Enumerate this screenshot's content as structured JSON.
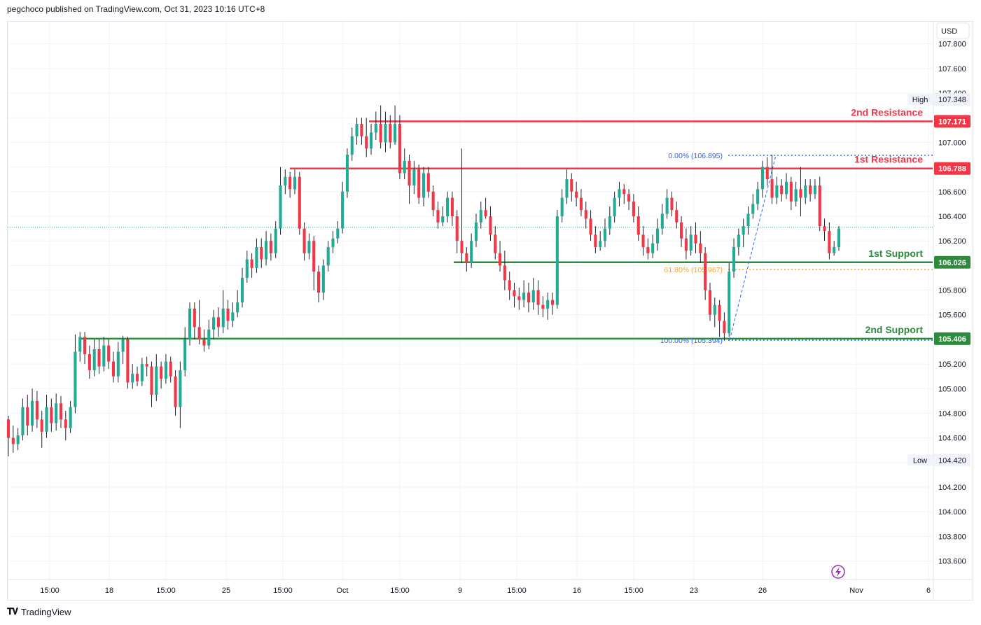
{
  "header": {
    "published_text": "pegchoco published on TradingView.com, Oct 31, 2023 10:16 UTC+8"
  },
  "footer": {
    "logo_icon": "tradingview-logo-icon",
    "brand": "TradingView"
  },
  "colors": {
    "up": "#22ab94",
    "down": "#f23645",
    "resistance": "#f23645",
    "support": "#2e8b3e",
    "fib_blue": "#2962ff",
    "fib_orange": "#f5a623",
    "grid": "#f0f3fa"
  },
  "chart_data": {
    "type": "candlestick",
    "currency": "USD",
    "ylim": [
      103.45,
      107.98
    ],
    "y_ticks": [
      "107.800",
      "107.600",
      "107.400",
      "107.200",
      "107.000",
      "106.800",
      "106.600",
      "106.400",
      "106.200",
      "106.000",
      "105.800",
      "105.600",
      "105.400",
      "105.200",
      "105.000",
      "104.800",
      "104.600",
      "104.400",
      "104.200",
      "104.000",
      "103.800",
      "103.600"
    ],
    "x_ticks": [
      "15:00",
      "18",
      "15:00",
      "25",
      "15:00",
      "Oct",
      "15:00",
      "9",
      "15:00",
      "16",
      "15:00",
      "23",
      "26",
      "Nov",
      "6"
    ],
    "high": {
      "label": "High",
      "value": "107.348"
    },
    "low": {
      "label": "Low",
      "value": "104.420"
    },
    "current_price": 106.31,
    "levels": [
      {
        "name": "2nd Resistance",
        "value": "107.171",
        "kind": "resistance"
      },
      {
        "name": "1st Resistance",
        "value": "106.788",
        "kind": "resistance"
      },
      {
        "name": "1st Support",
        "value": "106.026",
        "kind": "support"
      },
      {
        "name": "2nd Support",
        "value": "105.406",
        "kind": "support"
      }
    ],
    "fibonacci": [
      {
        "label": "0.00% (106.895)",
        "value": 106.895
      },
      {
        "label": "61.80% (105.967)",
        "value": 105.967
      },
      {
        "label": "100.00% (105.394)",
        "value": 105.394
      }
    ],
    "candles": [
      [
        104.75,
        104.6,
        104.78,
        104.45
      ],
      [
        104.6,
        104.55,
        104.7,
        104.48
      ],
      [
        104.55,
        104.62,
        104.68,
        104.5
      ],
      [
        104.62,
        104.85,
        104.92,
        104.58
      ],
      [
        104.85,
        104.7,
        104.95,
        104.62
      ],
      [
        104.7,
        104.9,
        105.0,
        104.65
      ],
      [
        104.9,
        104.75,
        104.98,
        104.68
      ],
      [
        104.75,
        104.65,
        104.82,
        104.52
      ],
      [
        104.65,
        104.85,
        104.95,
        104.6
      ],
      [
        104.85,
        104.72,
        104.92,
        104.65
      ],
      [
        104.72,
        104.88,
        104.96,
        104.66
      ],
      [
        104.88,
        104.75,
        104.94,
        104.68
      ],
      [
        104.75,
        104.68,
        104.82,
        104.58
      ],
      [
        104.68,
        104.85,
        104.9,
        104.64
      ],
      [
        104.85,
        105.3,
        105.44,
        104.8
      ],
      [
        105.3,
        105.42,
        105.46,
        105.22
      ],
      [
        105.42,
        105.28,
        105.46,
        105.2
      ],
      [
        105.28,
        105.15,
        105.35,
        105.08
      ],
      [
        105.15,
        105.32,
        105.4,
        105.1
      ],
      [
        105.32,
        105.18,
        105.4,
        105.12
      ],
      [
        105.18,
        105.35,
        105.42,
        105.14
      ],
      [
        105.35,
        105.22,
        105.4,
        105.16
      ],
      [
        105.22,
        105.1,
        105.3,
        105.05
      ],
      [
        105.1,
        105.3,
        105.38,
        105.05
      ],
      [
        105.3,
        105.4,
        105.43,
        105.2
      ],
      [
        105.4,
        105.05,
        105.42,
        105.0
      ],
      [
        105.05,
        105.12,
        105.2,
        105.0
      ],
      [
        105.12,
        105.06,
        105.18,
        105.02
      ],
      [
        105.06,
        105.2,
        105.25,
        105.02
      ],
      [
        105.2,
        105.18,
        105.26,
        105.1
      ],
      [
        105.18,
        104.95,
        105.22,
        104.85
      ],
      [
        104.95,
        105.18,
        105.28,
        104.9
      ],
      [
        105.18,
        105.08,
        105.22,
        105.0
      ],
      [
        105.08,
        105.22,
        105.28,
        105.04
      ],
      [
        105.22,
        105.1,
        105.26,
        105.05
      ],
      [
        105.1,
        104.85,
        105.15,
        104.78
      ],
      [
        104.85,
        105.15,
        105.22,
        104.68
      ],
      [
        105.15,
        105.4,
        105.5,
        105.1
      ],
      [
        105.4,
        105.65,
        105.7,
        105.35
      ],
      [
        105.65,
        105.5,
        105.7,
        105.4
      ],
      [
        105.5,
        105.4,
        105.72,
        105.36
      ],
      [
        105.4,
        105.35,
        105.48,
        105.3
      ],
      [
        105.35,
        105.48,
        105.56,
        105.32
      ],
      [
        105.48,
        105.58,
        105.64,
        105.4
      ],
      [
        105.58,
        105.5,
        105.66,
        105.42
      ],
      [
        105.5,
        105.65,
        105.8,
        105.45
      ],
      [
        105.65,
        105.55,
        105.72,
        105.48
      ],
      [
        105.55,
        105.62,
        105.7,
        105.5
      ],
      [
        105.62,
        105.7,
        105.8,
        105.58
      ],
      [
        105.7,
        105.9,
        105.98,
        105.66
      ],
      [
        105.9,
        106.05,
        106.12,
        105.86
      ],
      [
        106.05,
        105.98,
        106.1,
        105.9
      ],
      [
        105.98,
        106.15,
        106.22,
        105.94
      ],
      [
        106.15,
        106.05,
        106.22,
        105.98
      ],
      [
        106.05,
        106.2,
        106.28,
        106.0
      ],
      [
        106.2,
        106.1,
        106.26,
        106.04
      ],
      [
        106.1,
        106.3,
        106.36,
        106.06
      ],
      [
        106.3,
        106.65,
        106.8,
        106.25
      ],
      [
        106.65,
        106.72,
        106.78,
        106.58
      ],
      [
        106.72,
        106.62,
        106.76,
        106.55
      ],
      [
        106.62,
        106.72,
        106.78,
        106.58
      ],
      [
        106.72,
        106.3,
        106.76,
        106.25
      ],
      [
        106.3,
        106.1,
        106.35,
        106.04
      ],
      [
        106.1,
        106.2,
        106.26,
        106.05
      ],
      [
        106.2,
        105.95,
        106.24,
        105.8
      ],
      [
        105.95,
        105.78,
        106.0,
        105.7
      ],
      [
        105.78,
        106.0,
        106.05,
        105.72
      ],
      [
        106.0,
        106.15,
        106.2,
        105.95
      ],
      [
        106.15,
        106.22,
        106.28,
        106.1
      ],
      [
        106.22,
        106.3,
        106.36,
        106.18
      ],
      [
        106.3,
        106.6,
        106.68,
        106.26
      ],
      [
        106.6,
        106.9,
        106.95,
        106.55
      ],
      [
        106.9,
        107.05,
        107.12,
        106.85
      ],
      [
        107.05,
        107.15,
        107.2,
        106.98
      ],
      [
        107.15,
        107.05,
        107.2,
        106.98
      ],
      [
        107.05,
        106.95,
        107.2,
        106.88
      ],
      [
        106.95,
        107.08,
        107.15,
        106.9
      ],
      [
        107.08,
        107.15,
        107.25,
        107.02
      ],
      [
        107.15,
        107.0,
        107.3,
        106.95
      ],
      [
        107.0,
        107.15,
        107.25,
        106.92
      ],
      [
        107.15,
        107.0,
        107.22,
        106.95
      ],
      [
        107.0,
        107.15,
        107.3,
        106.98
      ],
      [
        107.15,
        106.75,
        107.22,
        106.7
      ],
      [
        106.75,
        106.85,
        106.95,
        106.7
      ],
      [
        106.85,
        106.65,
        106.9,
        106.5
      ],
      [
        106.65,
        106.78,
        106.85,
        106.58
      ],
      [
        106.78,
        106.55,
        106.82,
        106.5
      ],
      [
        106.55,
        106.75,
        106.8,
        106.48
      ],
      [
        106.75,
        106.6,
        106.8,
        106.55
      ],
      [
        106.6,
        106.45,
        106.65,
        106.4
      ],
      [
        106.45,
        106.35,
        106.52,
        106.3
      ],
      [
        106.35,
        106.4,
        106.48,
        106.32
      ],
      [
        106.4,
        106.55,
        106.6,
        106.35
      ],
      [
        106.55,
        106.4,
        106.6,
        106.32
      ],
      [
        106.4,
        106.2,
        106.45,
        106.1
      ],
      [
        106.2,
        106.1,
        106.95,
        106.02
      ],
      [
        106.1,
        106.02,
        106.15,
        105.95
      ],
      [
        106.02,
        106.2,
        106.26,
        105.98
      ],
      [
        106.2,
        106.35,
        106.42,
        106.15
      ],
      [
        106.35,
        106.45,
        106.52,
        106.3
      ],
      [
        106.45,
        106.4,
        106.55,
        106.38
      ],
      [
        106.4,
        106.25,
        106.48,
        106.2
      ],
      [
        106.25,
        106.1,
        106.32,
        106.05
      ],
      [
        106.1,
        106.0,
        106.2,
        105.95
      ],
      [
        106.0,
        105.88,
        106.12,
        105.8
      ],
      [
        105.88,
        105.8,
        105.95,
        105.72
      ],
      [
        105.8,
        105.75,
        105.86,
        105.66
      ],
      [
        105.75,
        105.72,
        105.82,
        105.64
      ],
      [
        105.72,
        105.78,
        105.88,
        105.66
      ],
      [
        105.78,
        105.7,
        105.86,
        105.62
      ],
      [
        105.7,
        105.8,
        105.9,
        105.64
      ],
      [
        105.8,
        105.68,
        105.88,
        105.6
      ],
      [
        105.68,
        105.65,
        105.75,
        105.58
      ],
      [
        105.65,
        105.72,
        105.78,
        105.56
      ],
      [
        105.72,
        105.68,
        105.78,
        105.6
      ],
      [
        105.68,
        106.4,
        106.45,
        105.65
      ],
      [
        106.4,
        106.55,
        106.62,
        106.35
      ],
      [
        106.55,
        106.7,
        106.78,
        106.5
      ],
      [
        106.7,
        106.6,
        106.75,
        106.52
      ],
      [
        106.6,
        106.55,
        106.68,
        106.48
      ],
      [
        106.55,
        106.45,
        106.62,
        106.4
      ],
      [
        106.45,
        106.38,
        106.52,
        106.3
      ],
      [
        106.38,
        106.25,
        106.45,
        106.2
      ],
      [
        106.25,
        106.15,
        106.32,
        106.1
      ],
      [
        106.15,
        106.2,
        106.28,
        106.12
      ],
      [
        106.2,
        106.3,
        106.38,
        106.15
      ],
      [
        106.3,
        106.4,
        106.48,
        106.25
      ],
      [
        106.4,
        106.55,
        106.6,
        106.35
      ],
      [
        106.55,
        106.62,
        106.68,
        106.48
      ],
      [
        106.62,
        106.58,
        106.66,
        106.5
      ],
      [
        106.58,
        106.52,
        106.62,
        106.45
      ],
      [
        106.52,
        106.4,
        106.58,
        106.35
      ],
      [
        106.4,
        106.25,
        106.48,
        106.2
      ],
      [
        106.25,
        106.15,
        106.32,
        106.08
      ],
      [
        106.15,
        106.1,
        106.22,
        106.05
      ],
      [
        106.1,
        106.18,
        106.25,
        106.06
      ],
      [
        106.18,
        106.3,
        106.38,
        106.12
      ],
      [
        106.3,
        106.42,
        106.5,
        106.25
      ],
      [
        106.42,
        106.55,
        106.62,
        106.38
      ],
      [
        106.55,
        106.45,
        106.6,
        106.4
      ],
      [
        106.45,
        106.35,
        106.52,
        106.3
      ],
      [
        106.35,
        106.22,
        106.4,
        106.15
      ],
      [
        106.22,
        106.12,
        106.3,
        106.05
      ],
      [
        106.12,
        106.25,
        106.32,
        106.08
      ],
      [
        106.25,
        106.18,
        106.35,
        106.1
      ],
      [
        106.18,
        106.1,
        106.28,
        106.02
      ],
      [
        106.1,
        105.8,
        106.15,
        105.72
      ],
      [
        105.8,
        105.6,
        105.86,
        105.55
      ],
      [
        105.6,
        105.68,
        105.74,
        105.5
      ],
      [
        105.68,
        105.55,
        105.72,
        105.42
      ],
      [
        105.55,
        105.45,
        105.62,
        105.39
      ],
      [
        105.45,
        105.95,
        106.02,
        105.42
      ],
      [
        105.95,
        106.15,
        106.22,
        105.9
      ],
      [
        106.15,
        106.25,
        106.3,
        106.08
      ],
      [
        106.25,
        106.32,
        106.38,
        106.15
      ],
      [
        106.32,
        106.42,
        106.48,
        106.25
      ],
      [
        106.42,
        106.5,
        106.58,
        106.38
      ],
      [
        106.5,
        106.62,
        106.68,
        106.45
      ],
      [
        106.62,
        106.8,
        106.85,
        106.55
      ],
      [
        106.8,
        106.7,
        106.88,
        106.65
      ],
      [
        106.7,
        106.55,
        106.9,
        106.5
      ],
      [
        106.55,
        106.65,
        106.72,
        106.5
      ],
      [
        106.65,
        106.58,
        106.7,
        106.52
      ],
      [
        106.58,
        106.68,
        106.75,
        106.54
      ],
      [
        106.68,
        106.52,
        106.72,
        106.45
      ],
      [
        106.52,
        106.62,
        106.68,
        106.48
      ],
      [
        106.62,
        106.55,
        106.8,
        106.4
      ],
      [
        106.55,
        106.65,
        106.7,
        106.5
      ],
      [
        106.65,
        106.58,
        106.7,
        106.52
      ],
      [
        106.58,
        106.65,
        106.7,
        106.54
      ],
      [
        106.65,
        106.32,
        106.72,
        106.28
      ],
      [
        106.32,
        106.28,
        106.38,
        106.2
      ],
      [
        106.28,
        106.1,
        106.35,
        106.05
      ],
      [
        106.1,
        106.15,
        106.2,
        106.08
      ],
      [
        106.15,
        106.3,
        106.32,
        106.12
      ]
    ]
  }
}
